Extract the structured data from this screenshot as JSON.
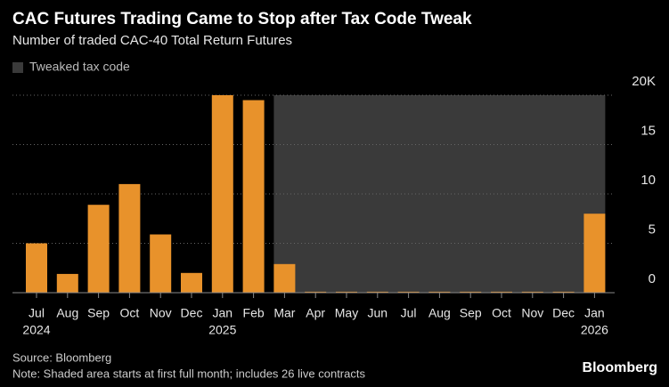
{
  "chart_data": {
    "type": "bar",
    "title": "CAC Futures Trading Came to Stop after Tax Code Tweak",
    "subtitle": "Number of traded CAC-40 Total Return Futures",
    "categories": [
      "Jul",
      "Aug",
      "Sep",
      "Oct",
      "Nov",
      "Dec",
      "Jan",
      "Feb",
      "Mar",
      "Apr",
      "May",
      "Jun",
      "Jul",
      "Aug",
      "Sep",
      "Oct",
      "Nov",
      "Dec",
      "Jan"
    ],
    "year_labels": [
      "2024",
      null,
      null,
      null,
      null,
      null,
      "2025",
      null,
      null,
      null,
      null,
      null,
      null,
      null,
      null,
      null,
      null,
      null,
      "2026"
    ],
    "values": [
      5000,
      1900,
      8900,
      11000,
      5900,
      2000,
      20000,
      19500,
      2900,
      100,
      100,
      100,
      100,
      100,
      100,
      100,
      100,
      100,
      8000
    ],
    "color": "#e8922b",
    "ylim": [
      0,
      20000
    ],
    "yticks": [
      0,
      {
        "value": 5000,
        "label": "5"
      },
      {
        "value": 10000,
        "label": "10"
      },
      {
        "value": 15000,
        "label": "15"
      },
      {
        "value": 20000,
        "label": "20K"
      }
    ],
    "grid": true,
    "shaded": {
      "label": "Tweaked tax code",
      "start_index": 8,
      "color": "#3a3a3a"
    },
    "source": "Source: Bloomberg",
    "note": "Note: Shaded area starts at first full month; includes 26 live contracts",
    "brand": "Bloomberg"
  }
}
